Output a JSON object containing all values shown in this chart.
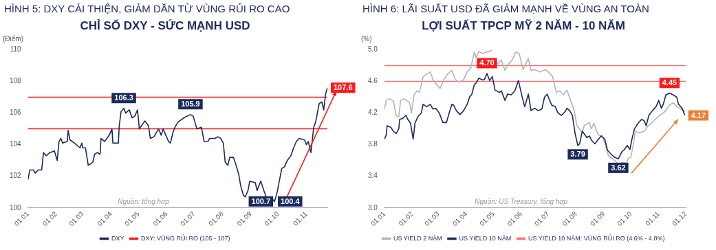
{
  "chart_data": [
    {
      "type": "line",
      "title": "HÌNH 5: DXY CẢI THIỆN, GIẢM DẦN TỪ VÙNG RỦI RO CAO",
      "subtitle": "CHỈ SỐ DXY - SỨC MẠNH USD",
      "ylabel": "(Điểm)",
      "legend": "bottom",
      "xlim": [
        "--01-01",
        "--11-24"
      ],
      "xticks": [
        {
          "value": "--01-01",
          "label": "01.01"
        },
        {
          "value": "--02-01",
          "label": "01.02"
        },
        {
          "value": "--03-01",
          "label": "01.03"
        },
        {
          "value": "--04-01",
          "label": "01.04"
        },
        {
          "value": "--05-01",
          "label": "01.05"
        },
        {
          "value": "--06-01",
          "label": "01.06"
        },
        {
          "value": "--07-01",
          "label": "01.07"
        },
        {
          "value": "--08-01",
          "label": "01.08"
        },
        {
          "value": "--09-01",
          "label": "01.09"
        },
        {
          "value": "--10-01",
          "label": "01.10"
        },
        {
          "value": "--11-01",
          "label": "01.11"
        }
      ],
      "ylim": [
        100,
        110
      ],
      "yticks": [
        100,
        102,
        104,
        106,
        108,
        110
      ],
      "series": [
        {
          "name": "DXY",
          "color": "#1b2a5c",
          "x": [
            "--01-01",
            "--01-03",
            "--01-07",
            "--01-09",
            "--01-12",
            "--01-16",
            "--01-18",
            "--01-21",
            "--01-25",
            "--01-30",
            "--02-02",
            "--02-04",
            "--02-06",
            "--02-08",
            "--02-13",
            "--02-14",
            "--02-16",
            "--02-21",
            "--02-27",
            "--02-29",
            "--03-01",
            "--03-04",
            "--03-07",
            "--03-10",
            "--03-12",
            "--03-14",
            "--03-17",
            "--03-20",
            "--03-21",
            "--03-25",
            "--03-30",
            "--04-02",
            "--04-03",
            "--04-09",
            "--04-10",
            "--04-12",
            "--04-15",
            "--04-17",
            "--04-21",
            "--04-24",
            "--04-27",
            "--04-30",
            "--05-02",
            "--05-08",
            "--05-12",
            "--05-14",
            "--05-18",
            "--05-23",
            "--05-26",
            "--05-28",
            "--05-31",
            "--06-03",
            "--06-05",
            "--06-08",
            "--06-10",
            "--06-13",
            "--06-15",
            "--06-20",
            "--06-23",
            "--06-27",
            "--06-30",
            "--07-04",
            "--07-09",
            "--07-12",
            "--07-16",
            "--07-18",
            "--07-24",
            "--07-27",
            "--07-30",
            "--08-02",
            "--08-04",
            "--08-07",
            "--08-09",
            "--08-13",
            "--08-16",
            "--08-19",
            "--08-21",
            "--08-24",
            "--08-26",
            "--08-29",
            "--08-31",
            "--09-06",
            "--09-08",
            "--09-12",
            "--09-16",
            "--09-18",
            "--09-23",
            "--09-27",
            "--09-30",
            "--10-05",
            "--10-08",
            "--10-11",
            "--10-15",
            "--10-18",
            "--10-21",
            "--10-24",
            "--10-30",
            "--11-01",
            "--11-03",
            "--11-06",
            "--11-09",
            "--11-11",
            "--11-15",
            "--11-18",
            "--11-20",
            "--11-22",
            "--11-24"
          ],
          "values": [
            101.8,
            102.4,
            102.4,
            102.2,
            102.4,
            102.4,
            103.5,
            103.3,
            103.5,
            103.6,
            103.0,
            104.2,
            104.4,
            104.1,
            104.2,
            104.9,
            104.3,
            104.1,
            103.8,
            104.1,
            103.8,
            103.8,
            102.7,
            102.8,
            102.9,
            103.4,
            103.5,
            103.4,
            104.4,
            104.2,
            104.6,
            105.0,
            104.1,
            104.1,
            105.2,
            106.1,
            106.3,
            106.0,
            106.2,
            105.7,
            105.8,
            106.2,
            105.0,
            105.5,
            105.2,
            104.4,
            104.5,
            105.0,
            104.6,
            105.0,
            104.6,
            104.2,
            104.1,
            104.8,
            105.1,
            105.4,
            105.5,
            105.7,
            105.8,
            105.9,
            105.8,
            105.0,
            105.1,
            104.2,
            104.2,
            104.4,
            104.4,
            104.5,
            104.4,
            104.1,
            102.9,
            102.7,
            103.2,
            103.2,
            102.7,
            102.1,
            101.4,
            100.8,
            100.7,
            101.1,
            101.7,
            101.6,
            101.1,
            101.7,
            101.0,
            100.7,
            100.7,
            100.4,
            101.0,
            102.5,
            102.6,
            103.0,
            103.3,
            103.8,
            104.2,
            104.4,
            104.3,
            104.0,
            104.2,
            103.5,
            105.1,
            105.4,
            106.6,
            106.7,
            106.2,
            107.2,
            107.6
          ]
        }
      ],
      "ref_lines": [
        {
          "axis": "y",
          "value": 107,
          "color": "#ff1a1a",
          "label": "DXY: VÙNG RỦI RO (105 - 107)"
        },
        {
          "axis": "y",
          "value": 105,
          "color": "#ff1a1a"
        }
      ],
      "annotations": [
        {
          "text": "106.3",
          "x": "--04-15",
          "y": 106.3
        },
        {
          "text": "105.9",
          "x": "--06-27",
          "y": 105.9
        },
        {
          "text": "100.7",
          "x": "--08-26",
          "y": 100.7
        },
        {
          "text": "100.4",
          "x": "--09-27",
          "y": 100.4
        },
        {
          "text": "107.6",
          "x": "--11-24",
          "y": 107.6
        },
        "Nguồn: tổng hợp"
      ]
    },
    {
      "type": "line",
      "title": "HÌNH 6: LÃI SUẤT USD ĐÃ GIẢM MẠNH VỀ VÙNG AN TOÀN",
      "subtitle": "LỢI SUẤT TPCP MỸ 2 NĂM - 10 NĂM",
      "ylabel": "(%)",
      "legend": "bottom",
      "xlim": [
        "--01-01",
        "--12-01"
      ],
      "xticks": [
        {
          "value": "--01-01",
          "label": "01.01"
        },
        {
          "value": "--02-01",
          "label": "01.02"
        },
        {
          "value": "--03-01",
          "label": "01.03"
        },
        {
          "value": "--04-01",
          "label": "01.04"
        },
        {
          "value": "--05-01",
          "label": "01.05"
        },
        {
          "value": "--06-01",
          "label": "01.06"
        },
        {
          "value": "--07-01",
          "label": "01.07"
        },
        {
          "value": "--08-01",
          "label": "01.08"
        },
        {
          "value": "--09-01",
          "label": "01.09"
        },
        {
          "value": "--10-01",
          "label": "01.10"
        },
        {
          "value": "--11-01",
          "label": "01.11"
        },
        {
          "value": "--12-01",
          "label": "01.12"
        }
      ],
      "ylim": [
        3,
        5
      ],
      "yticks": [
        {
          "value": 3,
          "label": "3.0"
        },
        3.4,
        3.8,
        4.2,
        4.6,
        {
          "value": 5,
          "label": "5.0"
        }
      ],
      "series": [
        {
          "name": "US YIELD 2 NĂM",
          "color": "#b5b5b5",
          "x": [
            "--01-01",
            "--01-03",
            "--01-07",
            "--01-11",
            "--01-14",
            "--01-17",
            "--01-19",
            "--01-23",
            "--01-29",
            "--01-31",
            "--02-03",
            "--02-06",
            "--02-09",
            "--02-13",
            "--02-17",
            "--02-21",
            "--02-24",
            "--02-28",
            "--03-03",
            "--03-07",
            "--03-11",
            "--03-16",
            "--03-20",
            "--03-24",
            "--03-29",
            "--04-02",
            "--04-06",
            "--04-10",
            "--04-12",
            "--04-15",
            "--04-19",
            "--04-23",
            "--04-27",
            "--04-30",
            "--05-02",
            "--05-06",
            "--05-10",
            "--05-14",
            "--05-18",
            "--05-22",
            "--05-26",
            "--05-30",
            "--06-03",
            "--06-06",
            "--06-09",
            "--06-12",
            "--06-16",
            "--06-22",
            "--06-28",
            "--07-02",
            "--07-06",
            "--07-10",
            "--07-14",
            "--07-18",
            "--07-22",
            "--07-26",
            "--07-30",
            "--08-02",
            "--08-05",
            "--08-08",
            "--08-10",
            "--08-16",
            "--08-18",
            "--08-21",
            "--08-25",
            "--08-28",
            "--08-30",
            "--09-02",
            "--09-06",
            "--09-10",
            "--09-14",
            "--09-18",
            "--09-22",
            "--09-26",
            "--09-28",
            "--10-01",
            "--10-04",
            "--10-06",
            "--10-10",
            "--10-16",
            "--10-20",
            "--10-24",
            "--10-28",
            "--11-02",
            "--11-08",
            "--11-13",
            "--11-17",
            "--11-21",
            "--11-24",
            "--11-30"
          ],
          "values": [
            4.25,
            4.36,
            4.38,
            4.35,
            4.17,
            4.15,
            4.36,
            4.38,
            4.33,
            4.2,
            4.43,
            4.48,
            4.46,
            4.66,
            4.69,
            4.72,
            4.62,
            4.56,
            4.51,
            4.62,
            4.69,
            4.74,
            4.62,
            4.59,
            4.62,
            4.72,
            4.77,
            4.97,
            4.9,
            4.98,
            4.95,
            4.97,
            4.98,
            5.0,
            null,
            4.82,
            4.87,
            4.74,
            4.82,
            4.87,
            4.97,
            4.95,
            4.75,
            4.82,
            4.89,
            4.74,
            4.75,
            4.72,
            4.75,
            4.71,
            4.66,
            4.46,
            4.48,
            4.43,
            4.49,
            4.36,
            4.23,
            4.04,
            4.0,
            3.95,
            4.04,
            4.08,
            4.0,
            4.07,
            3.94,
            3.91,
            3.92,
            3.82,
            3.66,
            3.63,
            3.59,
            3.55,
            3.58,
            3.56,
            3.63,
            3.64,
            3.82,
            3.97,
            3.95,
            3.97,
            4.04,
            4.07,
            4.12,
            4.17,
            4.22,
            4.3,
            4.33,
            4.28,
            4.26,
            4.22
          ]
        },
        {
          "name": "US YIELD 10 NĂM",
          "color": "#1b2a5c",
          "x": [
            "--01-01",
            "--01-03",
            "--01-04",
            "--01-08",
            "--01-11",
            "--01-14",
            "--01-17",
            "--01-18",
            "--01-21",
            "--01-25",
            "--01-27",
            "--01-30",
            "--02-02",
            "--02-04",
            "--02-07",
            "--02-11",
            "--02-13",
            "--02-17",
            "--02-21",
            "--02-24",
            "--02-27",
            "--03-02",
            "--03-06",
            "--03-10",
            "--03-13",
            "--03-16",
            "--03-18",
            "--03-21",
            "--03-25",
            "--03-29",
            "--04-02",
            "--04-05",
            "--04-07",
            "--04-10",
            "--04-12",
            "--04-15",
            "--04-19",
            "--04-21",
            "--04-24",
            "--04-27",
            "--04-30",
            "--05-03",
            "--05-08",
            "--05-10",
            "--05-14",
            "--05-17",
            "--05-21",
            "--05-25",
            "--05-29",
            "--06-02",
            "--06-05",
            "--06-09",
            "--06-12",
            "--06-16",
            "--06-20",
            "--06-24",
            "--06-27",
            "--06-30",
            "--07-02",
            "--07-05",
            "--07-09",
            "--07-12",
            "--07-16",
            "--07-20",
            "--07-22",
            "--07-25",
            "--07-28",
            "--07-31",
            "--08-03",
            "--08-05",
            "--08-08",
            "--08-10",
            "--08-13",
            "--08-16",
            "--08-18",
            "--08-22",
            "--08-26",
            "--08-29",
            "--09-02",
            "--09-05",
            "--09-09",
            "--09-13",
            "--09-17",
            "--09-21",
            "--09-24",
            "--09-27",
            "--09-30",
            "--10-02",
            "--10-05",
            "--10-09",
            "--10-13",
            "--10-16",
            "--10-18",
            "--10-21",
            "--10-25",
            "--10-29",
            "--11-01",
            "--11-04",
            "--11-06",
            "--11-09",
            "--11-13",
            "--11-17",
            "--11-21",
            "--11-23",
            "--11-27",
            "--11-30"
          ],
          "values": [
            3.87,
            3.92,
            4.04,
            4.02,
            3.97,
            3.94,
            4.0,
            4.12,
            4.13,
            4.17,
            4.12,
            4.07,
            3.87,
            4.07,
            4.15,
            4.2,
            4.31,
            4.28,
            4.31,
            4.25,
            4.26,
            4.2,
            4.08,
            4.08,
            4.2,
            4.31,
            4.3,
            4.23,
            4.18,
            4.23,
            4.31,
            4.41,
            4.43,
            4.56,
            4.58,
            4.64,
            4.62,
            4.62,
            4.7,
            4.61,
            4.66,
            4.49,
            4.46,
            4.48,
            4.36,
            4.44,
            4.43,
            4.48,
            4.61,
            4.41,
            4.28,
            4.44,
            4.23,
            4.26,
            4.23,
            4.25,
            4.4,
            4.44,
            4.38,
            4.3,
            4.28,
            4.2,
            4.17,
            4.22,
            4.26,
            4.23,
            4.17,
            3.94,
            3.79,
            3.81,
            3.97,
            3.94,
            3.89,
            3.91,
            3.86,
            3.81,
            3.87,
            3.91,
            3.87,
            3.73,
            3.68,
            3.64,
            3.62,
            3.71,
            3.74,
            3.79,
            3.74,
            3.86,
            4.0,
            4.07,
            4.12,
            4.1,
            4.04,
            4.17,
            4.23,
            4.28,
            4.36,
            4.26,
            4.31,
            4.43,
            4.45,
            4.43,
            4.4,
            4.31,
            4.26,
            4.17
          ]
        }
      ],
      "ref_lines": [
        {
          "axis": "y",
          "value": 4.8,
          "color": "#ff7070",
          "label": "US YIELD 10 NĂM: VÙNG RỦI RO (4.6% - 4.8%)"
        },
        {
          "axis": "y",
          "value": 4.6,
          "color": "#ff7070"
        }
      ],
      "annotations": [
        {
          "text": "4.70",
          "x": "--04-24",
          "y": 4.7
        },
        {
          "text": "4.45",
          "x": "--11-13",
          "y": 4.45
        },
        {
          "text": "3.79",
          "x": "--08-03",
          "y": 3.79
        },
        {
          "text": "3.62",
          "x": "--09-17",
          "y": 3.62
        },
        {
          "text": "4.17",
          "x": "--11-30",
          "y": 4.17
        },
        "Nguồn: US Treasury, tổng hợp"
      ]
    }
  ]
}
